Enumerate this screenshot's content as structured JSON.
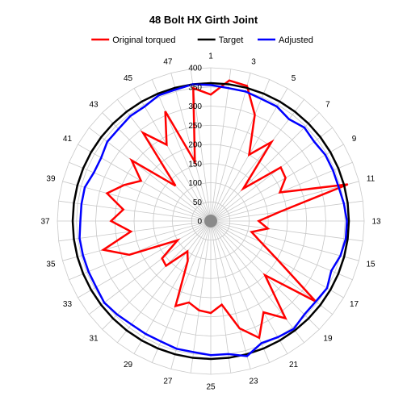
{
  "chart_data": {
    "type": "radar",
    "title": "48 Bolt HX Girth Joint",
    "categories": [
      "1",
      "2",
      "3",
      "4",
      "5",
      "6",
      "7",
      "8",
      "9",
      "10",
      "11",
      "12",
      "13",
      "14",
      "15",
      "16",
      "17",
      "18",
      "19",
      "20",
      "21",
      "22",
      "23",
      "24",
      "25",
      "26",
      "27",
      "28",
      "29",
      "30",
      "31",
      "32",
      "33",
      "34",
      "35",
      "36",
      "37",
      "38",
      "39",
      "40",
      "41",
      "42",
      "43",
      "44",
      "45",
      "46",
      "47",
      "48"
    ],
    "category_labels_shown": [
      "1",
      "3",
      "5",
      "7",
      "9",
      "11",
      "13",
      "15",
      "17",
      "19",
      "21",
      "23",
      "25",
      "27",
      "29",
      "31",
      "33",
      "35",
      "37",
      "39",
      "41",
      "43",
      "45",
      "47"
    ],
    "rlim": [
      0,
      400
    ],
    "r_ticks": [
      0,
      50,
      100,
      150,
      200,
      250,
      300,
      350,
      400
    ],
    "grid": true,
    "legend_position": "top",
    "series": [
      {
        "name": "Original torqued",
        "color": "#ff0000",
        "values": [
          330,
          370,
          365,
          300,
          200,
          260,
          120,
          230,
          225,
          195,
          370,
          180,
          125,
          150,
          110,
          140,
          200,
          345,
          200,
          320,
          275,
          330,
          290,
          220,
          240,
          235,
          220,
          240,
          120,
          100,
          165,
          160,
          100,
          230,
          290,
          210,
          260,
          230,
          280,
          245,
          210,
          260,
          130,
          290,
          230,
          310,
          160,
          350
        ]
      },
      {
        "name": "Target",
        "color": "#000000",
        "values": [
          360,
          360,
          360,
          360,
          360,
          360,
          360,
          360,
          360,
          360,
          360,
          360,
          360,
          360,
          360,
          360,
          360,
          360,
          360,
          360,
          360,
          360,
          360,
          360,
          360,
          360,
          360,
          360,
          360,
          360,
          360,
          360,
          360,
          360,
          360,
          360,
          360,
          360,
          360,
          360,
          360,
          360,
          360,
          360,
          360,
          360,
          360,
          360
        ]
      },
      {
        "name": "Adjusted",
        "color": "#0000ff",
        "values": [
          355,
          350,
          350,
          345,
          345,
          335,
          345,
          340,
          345,
          345,
          345,
          350,
          355,
          355,
          350,
          340,
          350,
          345,
          345,
          355,
          350,
          345,
          365,
          350,
          350,
          345,
          345,
          340,
          340,
          340,
          345,
          350,
          345,
          345,
          345,
          345,
          340,
          340,
          340,
          330,
          330,
          340,
          340,
          345,
          345,
          355,
          355,
          360
        ]
      }
    ]
  }
}
